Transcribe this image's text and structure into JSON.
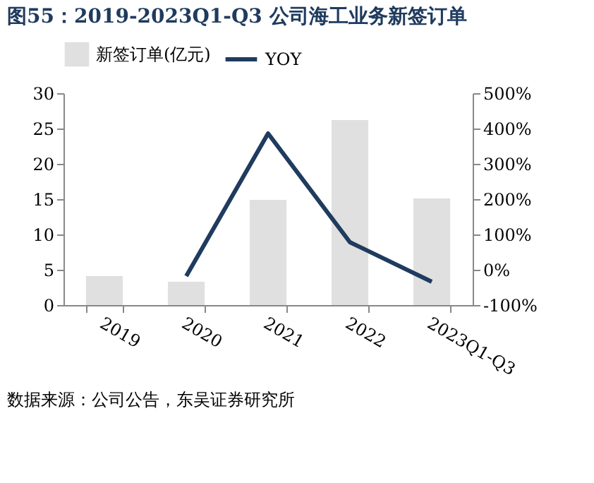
{
  "chart_data": {
    "type": "bar",
    "title": "图55：2019-2023Q1-Q3 公司海工业务新签订单",
    "categories": [
      "2019",
      "2020",
      "2021",
      "2022",
      "2023Q1-Q3"
    ],
    "series": [
      {
        "name": "新签订单(亿元)",
        "color": "#e0e0e0",
        "values": [
          4.1,
          3.3,
          14.9,
          26.2,
          15.1
        ]
      },
      {
        "name": "YOY",
        "type": "line",
        "axis": "y2",
        "color": "#1f3b5e",
        "values": [
          null,
          -18,
          386,
          78,
          -34
        ]
      }
    ],
    "ylim": [
      0,
      30
    ],
    "yticks": [
      0,
      5,
      10,
      15,
      20,
      25,
      30
    ],
    "y2lim": [
      -100,
      500
    ],
    "y2ticks": [
      {
        "value": -100,
        "label": "-100%"
      },
      {
        "value": 0,
        "label": "0%"
      },
      {
        "value": 100,
        "label": "100%"
      },
      {
        "value": 200,
        "label": "200%"
      },
      {
        "value": 300,
        "label": "300%"
      },
      {
        "value": 400,
        "label": "400%"
      },
      {
        "value": 500,
        "label": "500%"
      }
    ],
    "legend": "top",
    "grid": false,
    "annotations": [
      "数据来源：公司公告，东吴证券研究所"
    ]
  }
}
